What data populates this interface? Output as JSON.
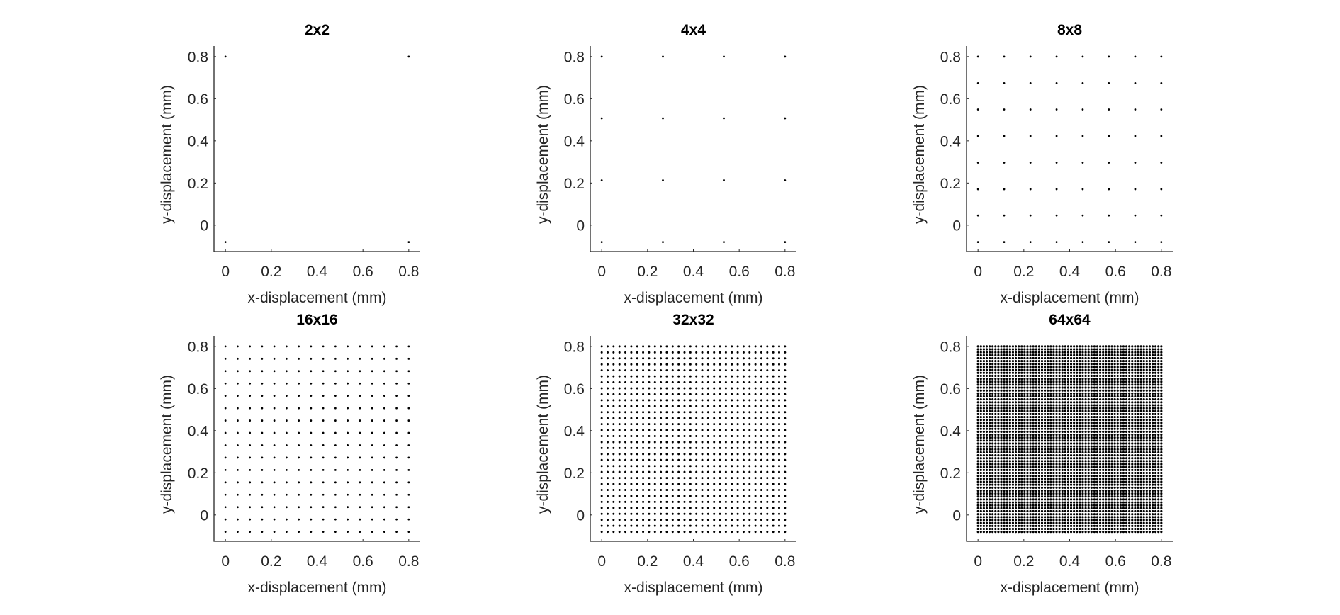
{
  "figure": {
    "background": "#ffffff",
    "axis_color": "#262626",
    "marker_color": "#000000",
    "layout": {
      "rows": 2,
      "cols": 3
    }
  },
  "chart_data": [
    {
      "type": "scatter",
      "title": "2x2",
      "n": 2,
      "xlabel": "x-displacement (mm)",
      "ylabel": "y-displacement (mm)",
      "x_range": [
        0,
        0.8
      ],
      "y_range": [
        -0.08,
        0.8
      ],
      "xlim": [
        -0.05,
        0.85
      ],
      "ylim": [
        -0.125,
        0.85
      ],
      "xticks": [
        "0",
        "0.2",
        "0.4",
        "0.6",
        "0.8"
      ],
      "yticks": [
        "0",
        "0.2",
        "0.4",
        "0.6",
        "0.8"
      ],
      "x_values": [
        0,
        0.8
      ],
      "y_values": [
        -0.08,
        0.8
      ],
      "grid": false
    },
    {
      "type": "scatter",
      "title": "4x4",
      "n": 4,
      "xlabel": "x-displacement (mm)",
      "ylabel": "y-displacement (mm)",
      "x_range": [
        0,
        0.8
      ],
      "y_range": [
        -0.08,
        0.8
      ],
      "xlim": [
        -0.05,
        0.85
      ],
      "ylim": [
        -0.125,
        0.85
      ],
      "xticks": [
        "0",
        "0.2",
        "0.4",
        "0.6",
        "0.8"
      ],
      "yticks": [
        "0",
        "0.2",
        "0.4",
        "0.6",
        "0.8"
      ],
      "x_values": [
        0,
        0.267,
        0.533,
        0.8
      ],
      "y_values": [
        -0.08,
        0.213,
        0.507,
        0.8
      ],
      "grid": false
    },
    {
      "type": "scatter",
      "title": "8x8",
      "n": 8,
      "xlabel": "x-displacement (mm)",
      "ylabel": "y-displacement (mm)",
      "x_range": [
        0,
        0.8
      ],
      "y_range": [
        -0.08,
        0.8
      ],
      "xlim": [
        -0.05,
        0.85
      ],
      "ylim": [
        -0.125,
        0.85
      ],
      "xticks": [
        "0",
        "0.2",
        "0.4",
        "0.6",
        "0.8"
      ],
      "yticks": [
        "0",
        "0.2",
        "0.4",
        "0.6",
        "0.8"
      ],
      "x_values": [
        0,
        0.114,
        0.229,
        0.343,
        0.457,
        0.571,
        0.686,
        0.8
      ],
      "y_values": [
        -0.08,
        0.046,
        0.171,
        0.297,
        0.423,
        0.549,
        0.674,
        0.8
      ],
      "grid": false
    },
    {
      "type": "scatter",
      "title": "16x16",
      "n": 16,
      "xlabel": "x-displacement (mm)",
      "ylabel": "y-displacement (mm)",
      "x_range": [
        0,
        0.8
      ],
      "y_range": [
        -0.08,
        0.8
      ],
      "xlim": [
        -0.05,
        0.85
      ],
      "ylim": [
        -0.125,
        0.85
      ],
      "xticks": [
        "0",
        "0.2",
        "0.4",
        "0.6",
        "0.8"
      ],
      "yticks": [
        "0",
        "0.2",
        "0.4",
        "0.6",
        "0.8"
      ],
      "grid": false
    },
    {
      "type": "scatter",
      "title": "32x32",
      "n": 32,
      "xlabel": "x-displacement (mm)",
      "ylabel": "y-displacement (mm)",
      "x_range": [
        0,
        0.8
      ],
      "y_range": [
        -0.08,
        0.8
      ],
      "xlim": [
        -0.05,
        0.85
      ],
      "ylim": [
        -0.125,
        0.85
      ],
      "xticks": [
        "0",
        "0.2",
        "0.4",
        "0.6",
        "0.8"
      ],
      "yticks": [
        "0",
        "0.2",
        "0.4",
        "0.6",
        "0.8"
      ],
      "grid": false
    },
    {
      "type": "scatter",
      "title": "64x64",
      "n": 64,
      "xlabel": "x-displacement (mm)",
      "ylabel": "y-displacement (mm)",
      "x_range": [
        0,
        0.8
      ],
      "y_range": [
        -0.08,
        0.8
      ],
      "xlim": [
        -0.05,
        0.85
      ],
      "ylim": [
        -0.125,
        0.85
      ],
      "xticks": [
        "0",
        "0.2",
        "0.4",
        "0.6",
        "0.8"
      ],
      "yticks": [
        "0",
        "0.2",
        "0.4",
        "0.6",
        "0.8"
      ],
      "grid": false
    }
  ]
}
